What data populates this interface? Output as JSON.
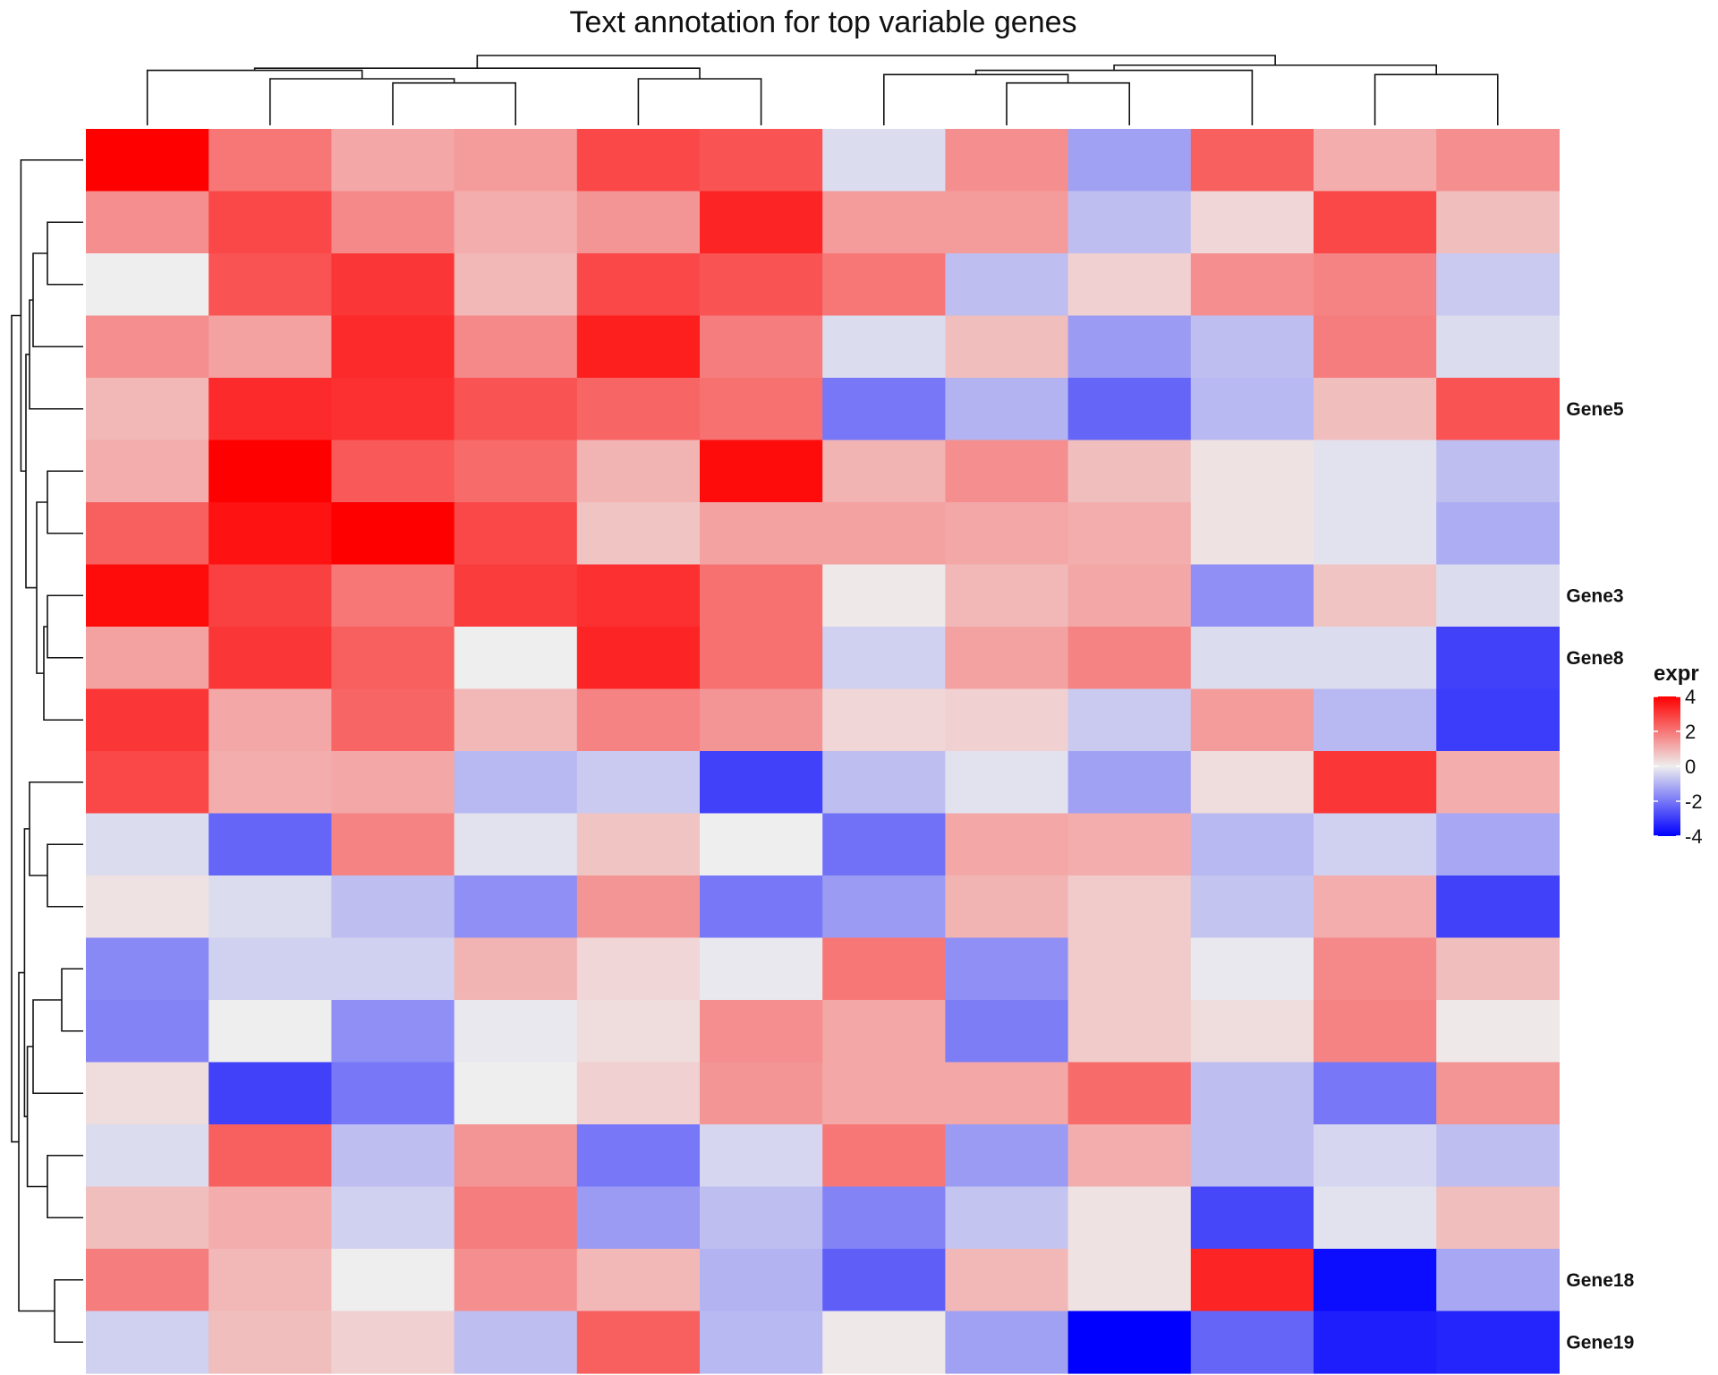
{
  "chart_data": {
    "type": "heatmap",
    "title": "Text annotation for top variable genes",
    "n_rows": 20,
    "n_cols": 12,
    "values": [
      [
        4.0,
        2.0,
        1.2,
        1.4,
        2.8,
        2.6,
        -0.3,
        1.6,
        -1.3,
        2.4,
        1.1,
        1.6
      ],
      [
        1.6,
        2.8,
        1.7,
        1.1,
        1.5,
        3.4,
        1.4,
        1.4,
        -0.8,
        0.4,
        2.8,
        0.8
      ],
      [
        0.0,
        2.6,
        3.1,
        0.9,
        2.8,
        2.6,
        2.0,
        -0.8,
        0.5,
        1.6,
        1.8,
        -0.6
      ],
      [
        1.6,
        1.3,
        3.3,
        1.7,
        3.5,
        1.9,
        -0.3,
        0.8,
        -1.4,
        -0.8,
        1.9,
        -0.3
      ],
      [
        0.9,
        3.3,
        3.2,
        2.6,
        2.3,
        2.1,
        -2.0,
        -1.0,
        -2.3,
        -0.9,
        0.8,
        2.6
      ],
      [
        1.1,
        4.0,
        2.5,
        2.2,
        1.0,
        3.8,
        1.0,
        1.6,
        0.8,
        0.2,
        -0.2,
        -0.8
      ],
      [
        2.4,
        3.7,
        4.0,
        2.8,
        0.7,
        1.3,
        1.3,
        1.2,
        1.1,
        0.2,
        -0.2,
        -1.1
      ],
      [
        3.8,
        2.9,
        2.0,
        3.0,
        3.2,
        2.1,
        0.1,
        0.9,
        1.2,
        -1.6,
        0.7,
        -0.3
      ],
      [
        1.3,
        3.1,
        2.4,
        0.0,
        3.4,
        2.1,
        -0.5,
        1.3,
        1.8,
        -0.3,
        -0.3,
        -2.9
      ],
      [
        3.1,
        1.2,
        2.3,
        0.9,
        1.8,
        1.5,
        0.4,
        0.5,
        -0.6,
        1.4,
        -0.9,
        -3.0
      ],
      [
        2.8,
        1.1,
        1.2,
        -0.9,
        -0.6,
        -2.9,
        -0.8,
        -0.2,
        -1.3,
        0.3,
        3.1,
        1.1
      ],
      [
        -0.3,
        -2.3,
        1.8,
        -0.2,
        0.7,
        0.0,
        -2.1,
        1.2,
        1.1,
        -0.9,
        -0.5,
        -1.2
      ],
      [
        0.2,
        -0.3,
        -0.8,
        -1.6,
        1.5,
        -2.0,
        -1.4,
        1.0,
        0.6,
        -0.7,
        1.1,
        -2.9
      ],
      [
        -1.7,
        -0.5,
        -0.5,
        1.0,
        0.4,
        -0.1,
        2.0,
        -1.6,
        0.6,
        -0.1,
        1.7,
        0.8
      ],
      [
        -1.8,
        0.0,
        -1.6,
        -0.1,
        0.3,
        1.6,
        1.2,
        -1.9,
        0.6,
        0.3,
        1.8,
        0.1
      ],
      [
        0.3,
        -2.9,
        -2.0,
        0.0,
        0.5,
        1.5,
        1.2,
        1.2,
        2.2,
        -0.8,
        -2.0,
        1.5
      ],
      [
        -0.3,
        2.4,
        -0.8,
        1.5,
        -2.0,
        -0.4,
        2.0,
        -1.4,
        1.1,
        -0.8,
        -0.4,
        -0.8
      ],
      [
        0.8,
        1.1,
        -0.5,
        1.9,
        -1.4,
        -0.8,
        -1.8,
        -0.7,
        0.2,
        -2.8,
        -0.2,
        0.8
      ],
      [
        1.9,
        0.9,
        0.0,
        1.6,
        0.9,
        -1.0,
        -2.4,
        0.9,
        0.2,
        3.4,
        -3.8,
        -1.2
      ],
      [
        -0.5,
        0.8,
        0.5,
        -0.8,
        2.4,
        -0.9,
        0.1,
        -1.3,
        -4.0,
        -2.3,
        -3.5,
        -3.4
      ]
    ],
    "row_labels": [
      "",
      "",
      "",
      "",
      "Gene5",
      "",
      "",
      "Gene3",
      "Gene8",
      "",
      "",
      "",
      "",
      "",
      "",
      "",
      "",
      "",
      "Gene18",
      "Gene19"
    ],
    "color_scale": {
      "range": [
        -4,
        4
      ],
      "colors": {
        "low": "#0000ff",
        "mid": "#eeeeee",
        "high": "#ff0000"
      },
      "low_lightness_mid": "#9a71f5"
    },
    "legend": {
      "title": "expr",
      "ticks": [
        "4",
        "2",
        "0",
        "-2",
        "-4"
      ],
      "tick_values": [
        4,
        2,
        0,
        -2,
        -4
      ],
      "placement": "right"
    },
    "col_dendrogram": {
      "comment": "merge heights in arbitrary units; leaves indexed 0-11 in display order",
      "merges": [
        {
          "id": "a",
          "left": 2,
          "right": 3,
          "height": 1.0
        },
        {
          "id": "b",
          "left": 1,
          "right": "a",
          "height": 1.1
        },
        {
          "id": "c",
          "left": 4,
          "right": 5,
          "height": 1.1
        },
        {
          "id": "d",
          "left": 0,
          "right": "b",
          "height": 1.3
        },
        {
          "id": "e",
          "left": "d",
          "right": "c",
          "height": 1.35
        },
        {
          "id": "f",
          "left": 7,
          "right": 8,
          "height": 1.0
        },
        {
          "id": "g",
          "left": 6,
          "right": "f",
          "height": 1.2
        },
        {
          "id": "h",
          "left": "g",
          "right": 9,
          "height": 1.3
        },
        {
          "id": "i",
          "left": 10,
          "right": 11,
          "height": 1.2
        },
        {
          "id": "j",
          "left": "h",
          "right": "i",
          "height": 1.42
        },
        {
          "id": "k",
          "left": "e",
          "right": "j",
          "height": 1.65
        }
      ]
    },
    "row_dendrogram": {
      "comment": "merge heights in arbitrary units; leaves indexed 0-19 in display order",
      "merges": [
        {
          "id": "r1",
          "left": 1,
          "right": 2,
          "height": 0.5
        },
        {
          "id": "r2",
          "left": "r1",
          "right": 3,
          "height": 0.7
        },
        {
          "id": "r3",
          "left": "r2",
          "right": 4,
          "height": 0.75
        },
        {
          "id": "r4",
          "left": 5,
          "right": 6,
          "height": 0.5
        },
        {
          "id": "r5",
          "left": 7,
          "right": 8,
          "height": 0.5
        },
        {
          "id": "r6",
          "left": "r5",
          "right": 9,
          "height": 0.55
        },
        {
          "id": "r7",
          "left": "r4",
          "right": "r6",
          "height": 0.65
        },
        {
          "id": "r8",
          "left": "r3",
          "right": "r7",
          "height": 0.8
        },
        {
          "id": "r9",
          "left": 0,
          "right": "r8",
          "height": 0.87
        },
        {
          "id": "r10",
          "left": 11,
          "right": 12,
          "height": 0.5
        },
        {
          "id": "r11",
          "left": 10,
          "right": "r10",
          "height": 0.75
        },
        {
          "id": "r12",
          "left": 13,
          "right": 14,
          "height": 0.3
        },
        {
          "id": "r13",
          "left": "r12",
          "right": 15,
          "height": 0.7
        },
        {
          "id": "r14",
          "left": 16,
          "right": 17,
          "height": 0.5
        },
        {
          "id": "r15",
          "left": "r13",
          "right": "r14",
          "height": 0.78
        },
        {
          "id": "r16",
          "left": "r11",
          "right": "r15",
          "height": 0.82
        },
        {
          "id": "r17",
          "left": 18,
          "right": 19,
          "height": 0.4
        },
        {
          "id": "r18",
          "left": "r16",
          "right": "r17",
          "height": 0.9
        },
        {
          "id": "r19",
          "left": "r9",
          "right": "r18",
          "height": 1.0
        }
      ]
    }
  }
}
